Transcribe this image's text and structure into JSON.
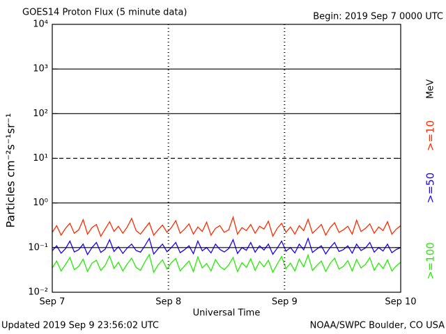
{
  "chart_data": {
    "type": "line",
    "title": "GOES14 Proton Flux (5 minute data)",
    "subtitle": "Begin: 2019 Sep 7 0000 UTC",
    "y_label": "Particles cm⁻²s⁻¹sr⁻¹",
    "x_label": "Universal Time",
    "footer_left": "Updated 2019 Sep  9 23:56:02 UTC",
    "footer_right": "NOAA/SWPC Boulder, CO USA",
    "legend_unit": "MeV",
    "log_y": true,
    "grid": true,
    "threshold": 10,
    "xlim": [
      0,
      3
    ],
    "xticks": [
      {
        "value": 0,
        "label": "Sep 7"
      },
      {
        "value": 1,
        "label": "Sep 8"
      },
      {
        "value": 2,
        "label": "Sep 9"
      },
      {
        "value": 3,
        "label": "Sep 10"
      }
    ],
    "ylim": [
      0.01,
      10000
    ],
    "yticks": [
      {
        "value": 0.01,
        "label": "10⁻²"
      },
      {
        "value": 0.1,
        "label": "10⁻¹"
      },
      {
        "value": 1,
        "label": "10⁰"
      },
      {
        "value": 10,
        "label": "10¹"
      },
      {
        "value": 100,
        "label": "10²"
      },
      {
        "value": 1000,
        "label": "10³"
      },
      {
        "value": 10000,
        "label": "10⁴"
      }
    ],
    "series": [
      {
        "name": ">=10",
        "color": "#ff2a00",
        "values": [
          0.22,
          0.31,
          0.19,
          0.27,
          0.35,
          0.21,
          0.25,
          0.42,
          0.2,
          0.28,
          0.33,
          0.18,
          0.26,
          0.38,
          0.23,
          0.3,
          0.21,
          0.29,
          0.45,
          0.24,
          0.2,
          0.27,
          0.36,
          0.19,
          0.25,
          0.32,
          0.22,
          0.28,
          0.4,
          0.21,
          0.26,
          0.34,
          0.2,
          0.29,
          0.23,
          0.37,
          0.19,
          0.27,
          0.31,
          0.22,
          0.25,
          0.48,
          0.2,
          0.28,
          0.24,
          0.33,
          0.21,
          0.3,
          0.26,
          0.39,
          0.18,
          0.27,
          0.35,
          0.22,
          0.29,
          0.2,
          0.31,
          0.24,
          0.43,
          0.21,
          0.26,
          0.33,
          0.19,
          0.28,
          0.36,
          0.22,
          0.25,
          0.3,
          0.2,
          0.41,
          0.23,
          0.27,
          0.34,
          0.21,
          0.29,
          0.24,
          0.38,
          0.2,
          0.26,
          0.31
        ]
      },
      {
        "name": ">=50",
        "color": "#1a00ff",
        "values": [
          0.085,
          0.11,
          0.075,
          0.095,
          0.14,
          0.08,
          0.09,
          0.12,
          0.07,
          0.1,
          0.13,
          0.078,
          0.092,
          0.15,
          0.082,
          0.105,
          0.074,
          0.098,
          0.12,
          0.086,
          0.079,
          0.11,
          0.16,
          0.072,
          0.094,
          0.12,
          0.081,
          0.1,
          0.13,
          0.077,
          0.09,
          0.11,
          0.073,
          0.14,
          0.085,
          0.1,
          0.076,
          0.12,
          0.091,
          0.08,
          0.095,
          0.15,
          0.074,
          0.1,
          0.087,
          0.13,
          0.079,
          0.11,
          0.088,
          0.12,
          0.071,
          0.097,
          0.14,
          0.083,
          0.1,
          0.076,
          0.12,
          0.089,
          0.16,
          0.078,
          0.093,
          0.11,
          0.072,
          0.1,
          0.13,
          0.082,
          0.09,
          0.11,
          0.075,
          0.12,
          0.086,
          0.098,
          0.13,
          0.079,
          0.1,
          0.084,
          0.12,
          0.077,
          0.091,
          0.1
        ]
      },
      {
        "name": ">=100",
        "color": "#22ee00",
        "values": [
          0.035,
          0.05,
          0.03,
          0.042,
          0.06,
          0.032,
          0.038,
          0.055,
          0.029,
          0.045,
          0.052,
          0.031,
          0.04,
          0.065,
          0.034,
          0.047,
          0.03,
          0.043,
          0.058,
          0.036,
          0.031,
          0.048,
          0.07,
          0.028,
          0.041,
          0.053,
          0.033,
          0.046,
          0.057,
          0.03,
          0.039,
          0.05,
          0.029,
          0.062,
          0.035,
          0.044,
          0.03,
          0.054,
          0.038,
          0.032,
          0.041,
          0.06,
          0.029,
          0.046,
          0.036,
          0.056,
          0.031,
          0.049,
          0.037,
          0.052,
          0.028,
          0.043,
          0.063,
          0.034,
          0.045,
          0.03,
          0.055,
          0.037,
          0.068,
          0.031,
          0.04,
          0.05,
          0.029,
          0.044,
          0.058,
          0.033,
          0.038,
          0.051,
          0.03,
          0.054,
          0.035,
          0.042,
          0.059,
          0.031,
          0.045,
          0.034,
          0.053,
          0.03,
          0.039,
          0.047
        ]
      }
    ]
  }
}
